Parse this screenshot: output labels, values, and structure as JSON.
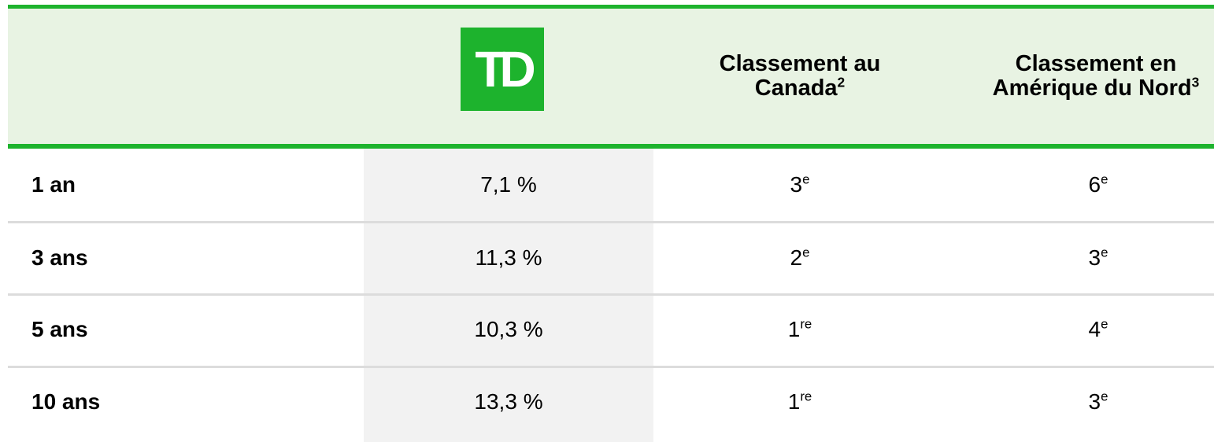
{
  "header": {
    "logo": "TD",
    "columns": [
      {
        "text": "Classement au Canada",
        "sup": "2"
      },
      {
        "text": "Classement en Amérique du Nord",
        "sup": "3"
      }
    ]
  },
  "table": {
    "rows": [
      {
        "label": "1 an",
        "return": "7,1 %",
        "canada": {
          "rank": "3",
          "sup": "e"
        },
        "north_america": {
          "rank": "6",
          "sup": "e"
        }
      },
      {
        "label": "3 ans",
        "return": "11,3 %",
        "canada": {
          "rank": "2",
          "sup": "e"
        },
        "north_america": {
          "rank": "3",
          "sup": "e"
        }
      },
      {
        "label": "5 ans",
        "return": "10,3 %",
        "canada": {
          "rank": "1",
          "sup": "re"
        },
        "north_america": {
          "rank": "4",
          "sup": "e"
        }
      },
      {
        "label": "10 ans",
        "return": "13,3 %",
        "canada": {
          "rank": "1",
          "sup": "re"
        },
        "north_america": {
          "rank": "3",
          "sup": "e"
        }
      }
    ]
  }
}
